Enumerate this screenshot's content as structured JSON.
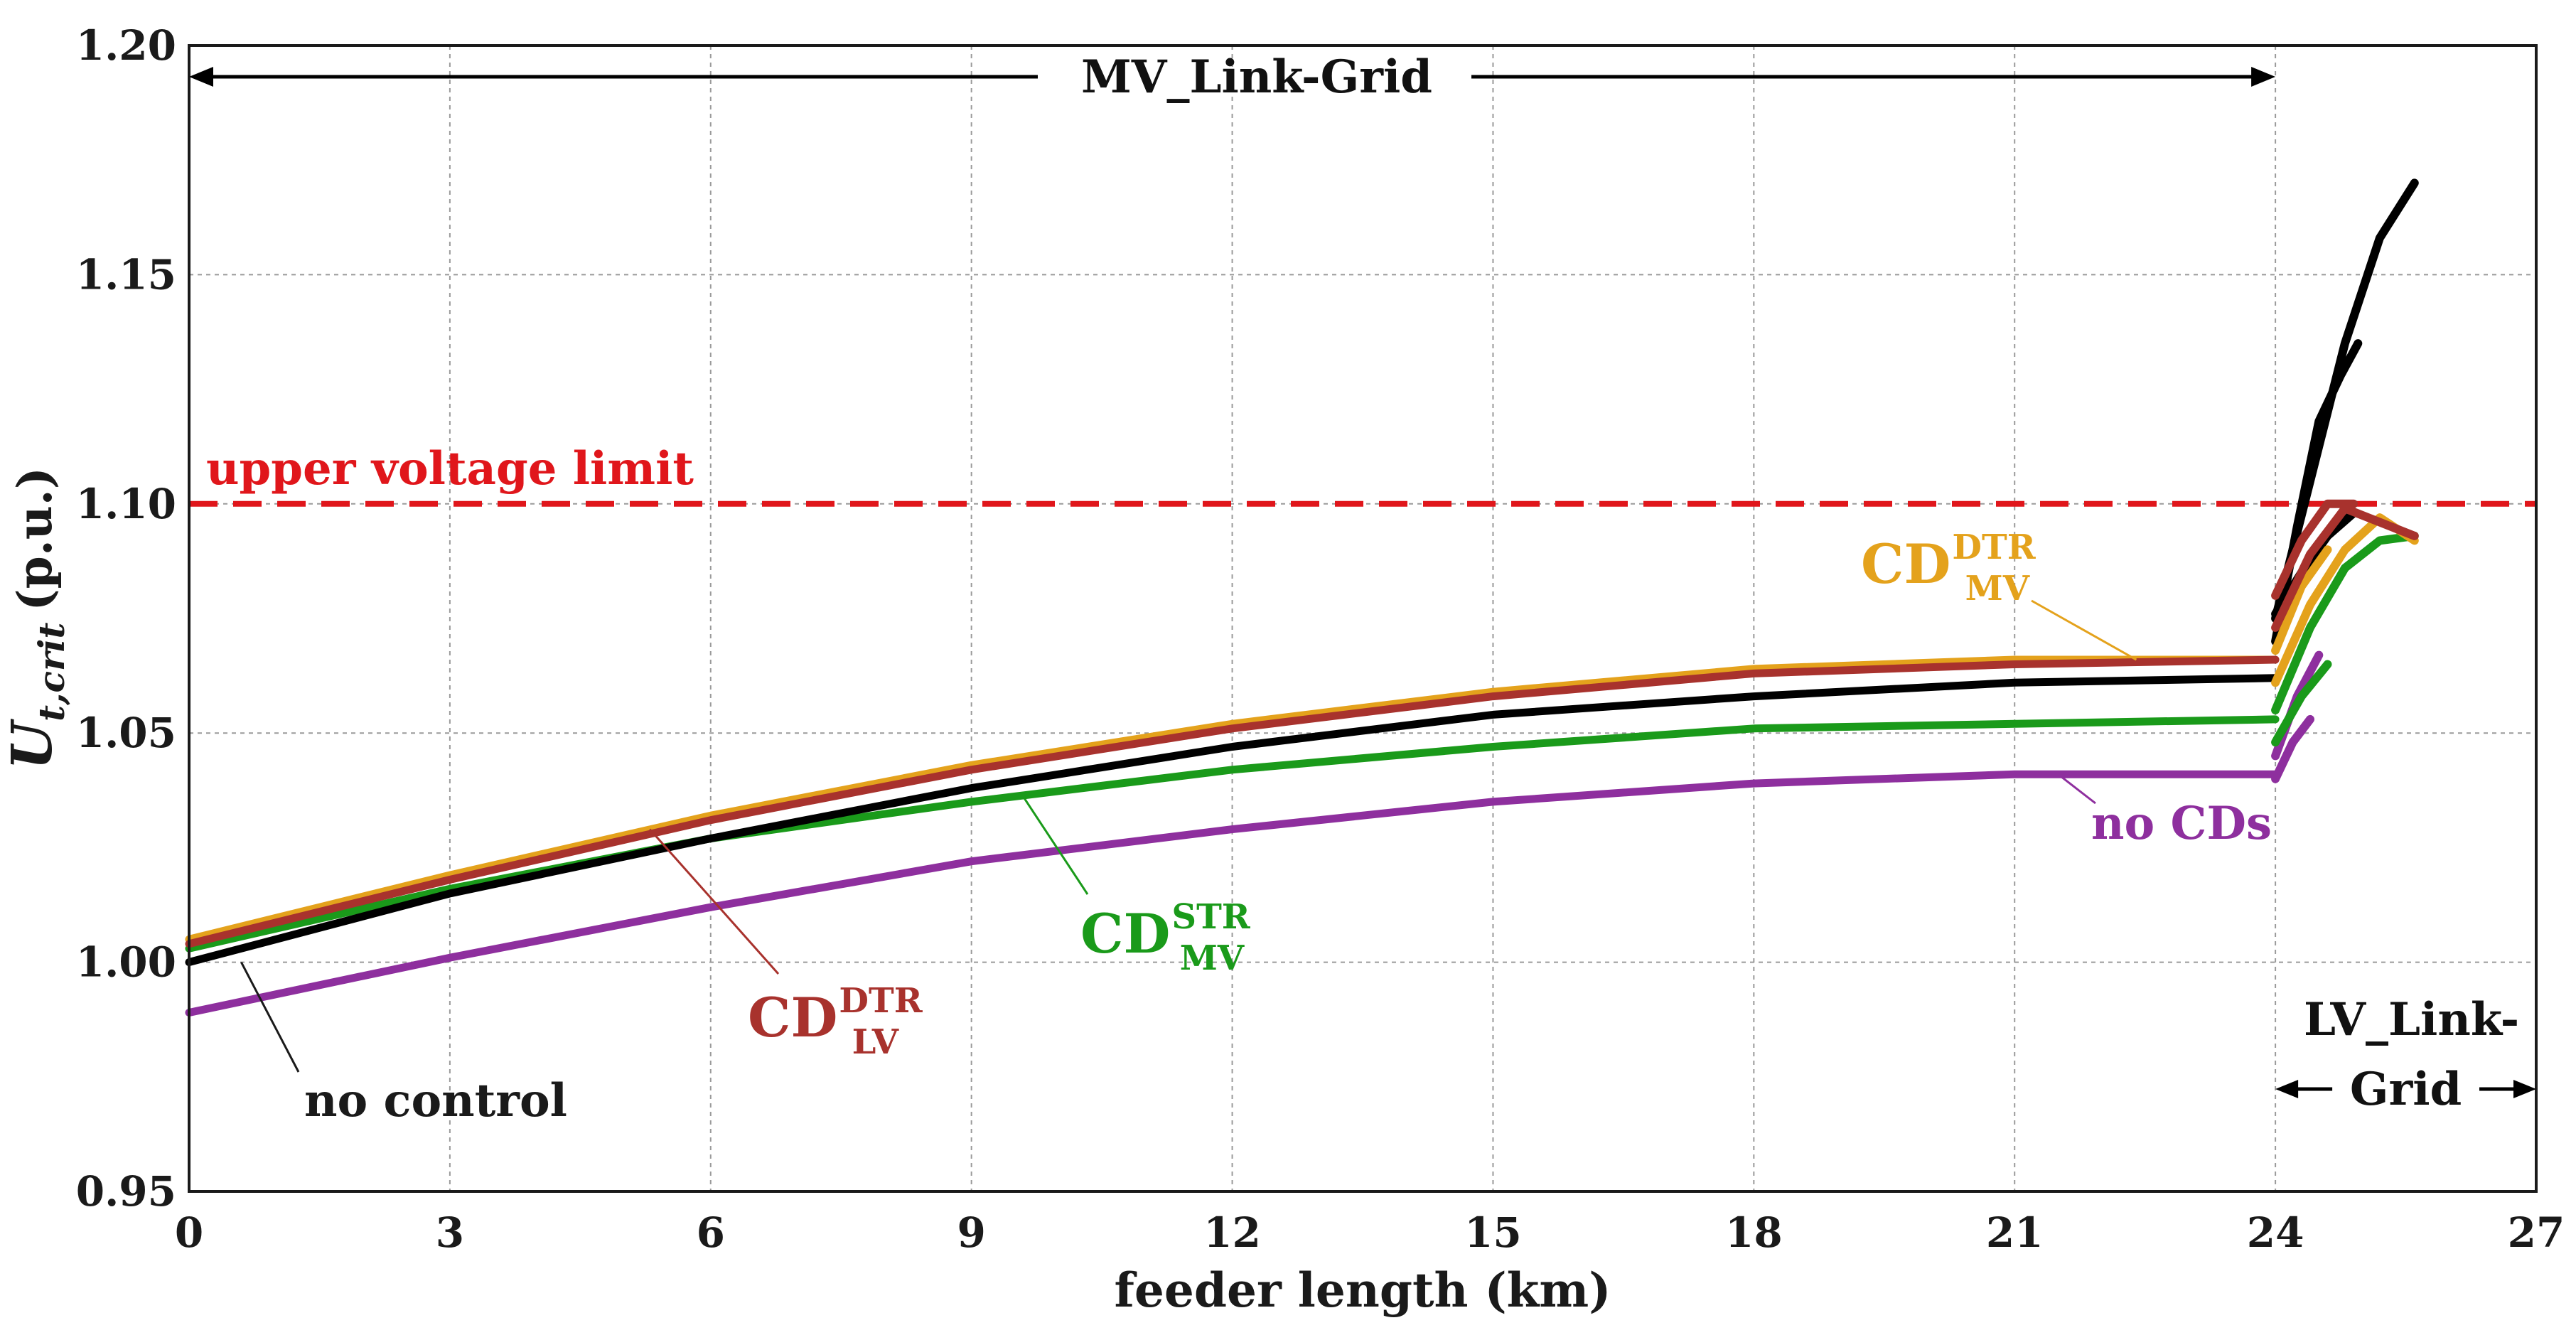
{
  "chart_data": {
    "type": "line",
    "title": "",
    "xlabel": "feeder length  (km)",
    "ylabel": "(p.u.)",
    "ylabel_symbol": "U",
    "ylabel_sub": "t,crit",
    "xlim": [
      0,
      27
    ],
    "ylim": [
      0.95,
      1.2
    ],
    "xticks": [
      0,
      3,
      6,
      9,
      12,
      15,
      18,
      21,
      24,
      27
    ],
    "xtick_labels": [
      "0",
      "3",
      "6",
      "9",
      "12",
      "15",
      "18",
      "21",
      "24",
      "27"
    ],
    "yticks": [
      0.95,
      1.0,
      1.05,
      1.1,
      1.15,
      1.2
    ],
    "ytick_labels": [
      "0.95",
      "1.00",
      "1.05",
      "1.10",
      "1.15",
      "1.20"
    ],
    "grid": true,
    "reference_line": {
      "label": "upper voltage limit",
      "y": 1.1,
      "color": "#e0161b",
      "style": "dashed"
    },
    "regions": [
      {
        "label": "MV_Link-Grid",
        "x_start": 0,
        "x_end": 24
      },
      {
        "label_line1": "LV_Link-",
        "label_line2": "Grid",
        "x_start": 24,
        "x_end": 27
      }
    ],
    "series": [
      {
        "name": "no control",
        "color": "#000000",
        "x": [
          0,
          3,
          6,
          9,
          12,
          15,
          18,
          21,
          24
        ],
        "y": [
          1.0,
          1.015,
          1.027,
          1.038,
          1.047,
          1.054,
          1.058,
          1.061,
          1.062
        ],
        "lv_branches": [
          {
            "x": [
              24,
              24.3,
              24.6,
              24.9
            ],
            "y": [
              1.076,
              1.085,
              1.093,
              1.098
            ]
          },
          {
            "x": [
              24,
              24.25,
              24.5,
              24.75,
              24.95
            ],
            "y": [
              1.07,
              1.095,
              1.118,
              1.128,
              1.135
            ]
          },
          {
            "x": [
              24,
              24.4,
              24.8,
              25.2,
              25.6
            ],
            "y": [
              1.075,
              1.105,
              1.135,
              1.158,
              1.17
            ]
          }
        ]
      },
      {
        "name": "CD LV DTR",
        "color": "#a8322d",
        "x": [
          0,
          3,
          6,
          9,
          12,
          15,
          18,
          21,
          24
        ],
        "y": [
          1.004,
          1.018,
          1.031,
          1.042,
          1.051,
          1.058,
          1.063,
          1.065,
          1.066
        ],
        "lv_branches": [
          {
            "x": [
              24,
              24.4,
              24.8,
              25.2,
              25.6
            ],
            "y": [
              1.073,
              1.089,
              1.099,
              1.096,
              1.093
            ]
          },
          {
            "x": [
              24,
              24.3,
              24.6,
              24.9
            ],
            "y": [
              1.08,
              1.092,
              1.1,
              1.1
            ]
          }
        ]
      },
      {
        "name": "CD MV DTR",
        "color": "#e4a21c",
        "x": [
          0,
          3,
          6,
          9,
          12,
          15,
          18,
          21,
          24
        ],
        "y": [
          1.005,
          1.019,
          1.032,
          1.043,
          1.052,
          1.059,
          1.064,
          1.066,
          1.066
        ],
        "lv_branches": [
          {
            "x": [
              24,
              24.4,
              24.8,
              25.2,
              25.6
            ],
            "y": [
              1.061,
              1.078,
              1.09,
              1.097,
              1.092
            ]
          },
          {
            "x": [
              24,
              24.3,
              24.6
            ],
            "y": [
              1.068,
              1.082,
              1.09
            ]
          }
        ]
      },
      {
        "name": "CD MV STR",
        "color": "#1a9a1a",
        "x": [
          0,
          3,
          6,
          9,
          12,
          15,
          18,
          21,
          24
        ],
        "y": [
          1.003,
          1.016,
          1.027,
          1.035,
          1.042,
          1.047,
          1.051,
          1.052,
          1.053
        ],
        "lv_branches": [
          {
            "x": [
              24,
              24.3,
              24.6
            ],
            "y": [
              1.048,
              1.058,
              1.065
            ]
          },
          {
            "x": [
              24,
              24.4,
              24.8,
              25.2,
              25.6
            ],
            "y": [
              1.055,
              1.073,
              1.086,
              1.092,
              1.093
            ]
          }
        ]
      },
      {
        "name": "no CDs",
        "color": "#8e2f9e",
        "x": [
          0,
          3,
          6,
          9,
          12,
          15,
          18,
          21,
          24
        ],
        "y": [
          0.989,
          1.001,
          1.012,
          1.022,
          1.029,
          1.035,
          1.039,
          1.041,
          1.041
        ],
        "lv_branches": [
          {
            "x": [
              24,
              24.2,
              24.4
            ],
            "y": [
              1.04,
              1.048,
              1.053
            ]
          },
          {
            "x": [
              24,
              24.25,
              24.5
            ],
            "y": [
              1.045,
              1.058,
              1.067
            ]
          }
        ]
      }
    ],
    "annotations": [
      {
        "key": "no_control",
        "text": "no control",
        "color": "#1a1a1a",
        "points_to_x": 0.6,
        "points_to_y": 1.0
      },
      {
        "key": "cd_lv_dtr",
        "base": "CD",
        "sup": "DTR",
        "sub": "LV",
        "color": "#a8322d",
        "points_to_x": 5.3,
        "points_to_y": 1.029
      },
      {
        "key": "cd_mv_str",
        "base": "CD",
        "sup": "STR",
        "sub": "MV",
        "color": "#1a9a1a",
        "points_to_x": 9.6,
        "points_to_y": 1.036
      },
      {
        "key": "cd_mv_dtr",
        "base": "CD",
        "sup": "DTR",
        "sub": "MV",
        "color": "#e4a21c",
        "points_to_x": 22.4,
        "points_to_y": 1.066
      },
      {
        "key": "no_cds",
        "text": "no CDs",
        "color": "#8e2f9e",
        "points_to_x": 21.5,
        "points_to_y": 1.041
      }
    ]
  }
}
